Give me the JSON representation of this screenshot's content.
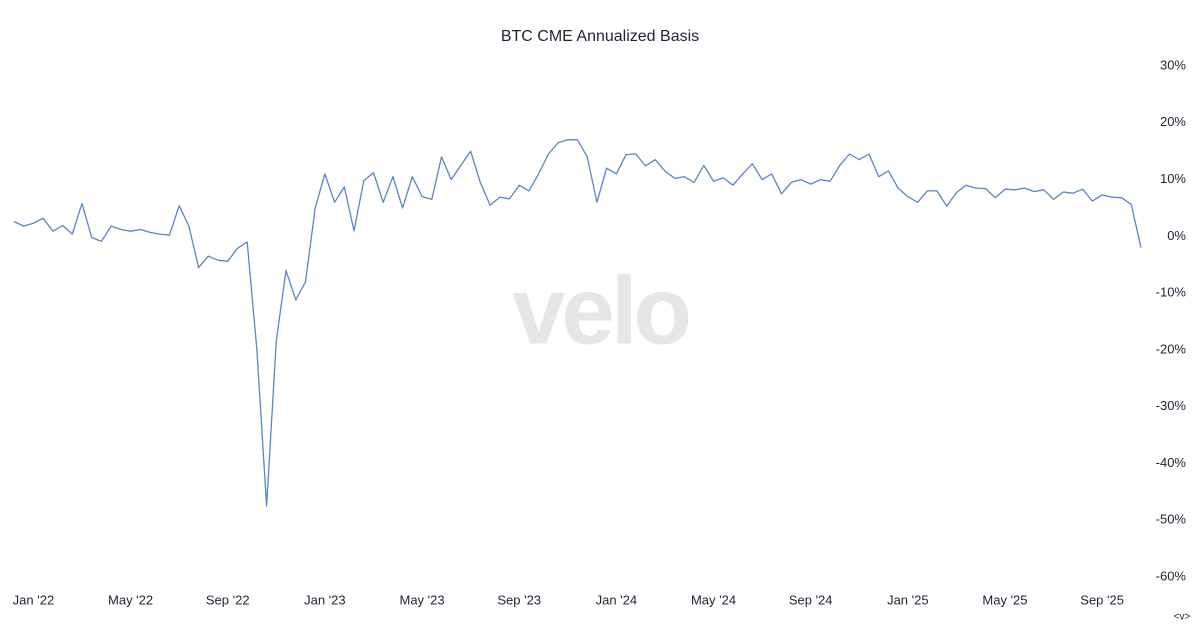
{
  "chart_data": {
    "type": "line",
    "title": "BTC CME Annualized Basis",
    "watermark": "velo",
    "controls": "<v>",
    "color": "#5b84c4",
    "categories": [
      null,
      null,
      "Jan '22",
      null,
      null,
      null,
      null,
      null,
      null,
      null,
      null,
      null,
      "May '22",
      null,
      null,
      null,
      null,
      null,
      null,
      null,
      null,
      null,
      "Sep '22",
      null,
      null,
      null,
      null,
      null,
      null,
      null,
      null,
      null,
      "Jan '23",
      null,
      null,
      null,
      null,
      null,
      null,
      null,
      null,
      null,
      "May '23",
      null,
      null,
      null,
      null,
      null,
      null,
      null,
      null,
      null,
      "Sep '23",
      null,
      null,
      null,
      null,
      null,
      null,
      null,
      null,
      null,
      "Jan '24",
      null,
      null,
      null,
      null,
      null,
      null,
      null,
      null,
      null,
      "May '24",
      null,
      null,
      null,
      null,
      null,
      null,
      null,
      null,
      null,
      "Sep '24",
      null,
      null,
      null,
      null,
      null,
      null,
      null,
      null,
      null,
      "Jan '25",
      null,
      null,
      null,
      null,
      null,
      null,
      null,
      null,
      null,
      "May '25",
      null,
      null,
      null,
      null,
      null,
      null,
      null,
      null,
      null,
      "Sep '25",
      null,
      null,
      null,
      null
    ],
    "values": [
      2.6,
      1.8,
      2.3,
      3.2,
      0.9,
      1.9,
      0.4,
      5.8,
      -0.2,
      -0.9,
      1.8,
      1.2,
      0.9,
      1.2,
      0.7,
      0.4,
      0.2,
      5.4,
      1.8,
      -5.5,
      -3.5,
      -4.2,
      -4.4,
      -2.1,
      -1,
      -20,
      -47.5,
      -18.4,
      -6,
      -11.2,
      -8,
      5,
      11,
      6,
      8.7,
      1,
      9.8,
      11.2,
      6,
      10.5,
      5,
      10.5,
      7,
      6.5,
      14,
      10,
      12.5,
      15,
      9.5,
      5.5,
      6.9,
      6.6,
      9,
      8,
      11,
      14.5,
      16.5,
      17,
      17,
      14,
      6,
      12,
      11,
      14.4,
      14.5,
      12.4,
      13.5,
      11.5,
      10.2,
      10.5,
      9.5,
      12.5,
      9.7,
      10.3,
      9,
      11,
      12.8,
      10,
      11,
      7.5,
      9.5,
      10,
      9.2,
      10,
      9.7,
      12.5,
      14.5,
      13.5,
      14.5,
      10.5,
      11.5,
      8.5,
      7,
      6,
      8,
      8,
      5.3,
      7.7,
      9,
      8.5,
      8.4,
      6.8,
      8.3,
      8.2,
      8.5,
      7.9,
      8.2,
      6.5,
      7.8,
      7.6,
      8.3,
      6.2,
      7.3,
      6.9,
      6.8,
      5.6,
      -2
    ],
    "ylim": [
      -60,
      30
    ],
    "yticks": [
      {
        "value": 30,
        "label": "30%"
      },
      {
        "value": 20,
        "label": "20%"
      },
      {
        "value": 10,
        "label": "10%"
      },
      {
        "value": 0,
        "label": "0%"
      },
      {
        "value": -10,
        "label": "-10%"
      },
      {
        "value": -20,
        "label": "-20%"
      },
      {
        "value": -30,
        "label": "-30%"
      },
      {
        "value": -40,
        "label": "-40%"
      },
      {
        "value": -50,
        "label": "-50%"
      },
      {
        "value": -60,
        "label": "-60%"
      }
    ],
    "grid": false
  }
}
